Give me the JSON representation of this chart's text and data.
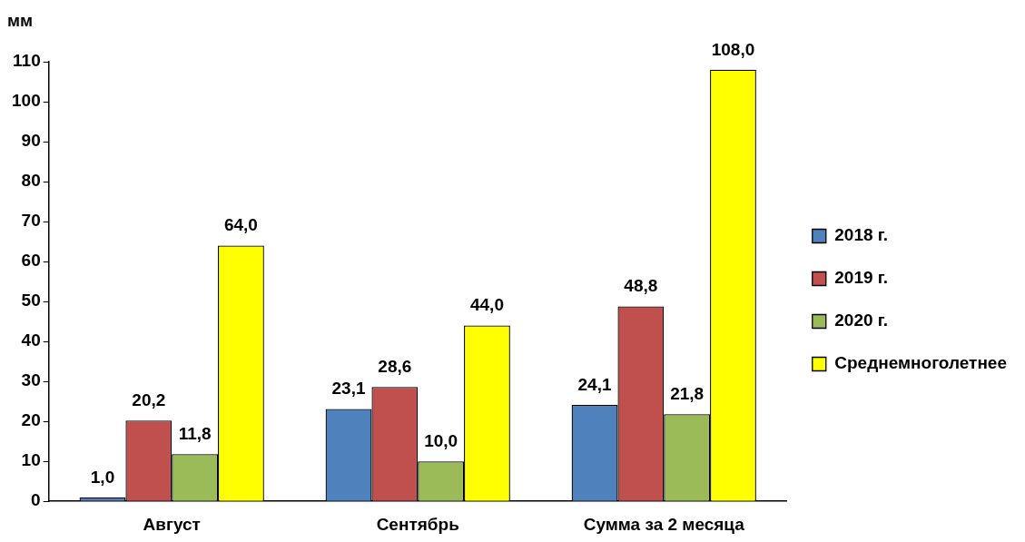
{
  "chart_data": {
    "type": "bar",
    "ylabel": "мм",
    "categories": [
      "Август",
      "Сентябрь",
      "Сумма за 2 месяца"
    ],
    "series": [
      {
        "name": "2018 г.",
        "color": "#4f81bd",
        "values": [
          1.0,
          23.1,
          24.1
        ],
        "value_labels": [
          "1,0",
          "23,1",
          "24,1"
        ]
      },
      {
        "name": "2019 г.",
        "color": "#c0504d",
        "values": [
          20.2,
          28.6,
          48.8
        ],
        "value_labels": [
          "20,2",
          "28,6",
          "48,8"
        ]
      },
      {
        "name": "2020 г.",
        "color": "#9bbb59",
        "values": [
          11.8,
          10.0,
          21.8
        ],
        "value_labels": [
          "11,8",
          "10,0",
          "21,8"
        ]
      },
      {
        "name": "Среднемноголетнее",
        "color": "#ffff00",
        "values": [
          64.0,
          44.0,
          108.0
        ],
        "value_labels": [
          "64,0",
          "44,0",
          "108,0"
        ]
      }
    ],
    "ylim": [
      0,
      110
    ],
    "yticks": [
      0,
      10,
      20,
      30,
      40,
      50,
      60,
      70,
      80,
      90,
      100,
      110
    ],
    "grid": false,
    "legend": "right"
  }
}
